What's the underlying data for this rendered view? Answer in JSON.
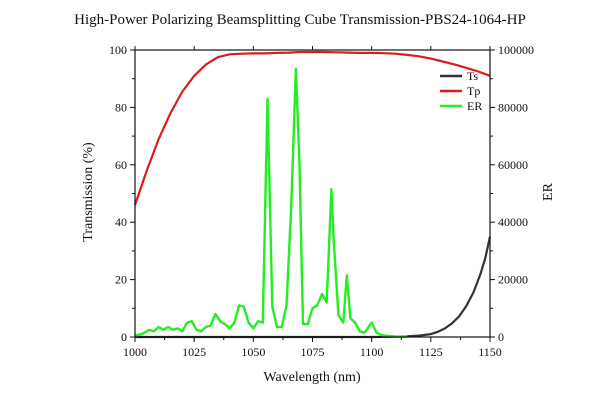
{
  "chart_data": {
    "type": "line",
    "title": "High-Power Polarizing Beamsplitting Cube Transmission-PBS24-1064-HP",
    "xlabel": "Wavelength (nm)",
    "ylabel_left": "Transmission (%)",
    "ylabel_right": "ER",
    "xlim": [
      1000,
      1150
    ],
    "ylim_left": [
      0,
      100
    ],
    "ylim_right": [
      0,
      100000
    ],
    "x_ticks": [
      "1000",
      "1025",
      "1050",
      "1075",
      "1100",
      "1125",
      "1150"
    ],
    "y_left_ticks": [
      "0",
      "20",
      "40",
      "60",
      "80",
      "100"
    ],
    "y_right_ticks": [
      "0",
      "20000",
      "40000",
      "60000",
      "80000",
      "100000"
    ],
    "grid": false,
    "legend_position": "top-right",
    "series": [
      {
        "name": "Ts",
        "axis": "left",
        "color": "#333333",
        "x": [
          1000,
          1100,
          1110,
          1115,
          1120,
          1125,
          1128,
          1131,
          1134,
          1137,
          1140,
          1143,
          1146,
          1148,
          1150
        ],
        "y": [
          0,
          0,
          0.1,
          0.2,
          0.5,
          1.0,
          1.8,
          3.0,
          4.8,
          7.2,
          10.8,
          15.5,
          22.0,
          27.5,
          35.0
        ]
      },
      {
        "name": "Tp",
        "axis": "left",
        "color": "#e01b1b",
        "x": [
          1000,
          1005,
          1010,
          1015,
          1020,
          1025,
          1030,
          1035,
          1040,
          1045,
          1050,
          1055,
          1060,
          1065,
          1070,
          1075,
          1080,
          1085,
          1090,
          1095,
          1100,
          1105,
          1110,
          1115,
          1120,
          1125,
          1130,
          1135,
          1140,
          1145,
          1150
        ],
        "y": [
          46,
          58,
          69,
          78,
          85.5,
          91,
          95,
          97.5,
          98.5,
          98.7,
          98.8,
          98.8,
          99,
          99.1,
          99.3,
          99.3,
          99.3,
          99.2,
          99.1,
          99.0,
          99.0,
          98.9,
          98.7,
          98.3,
          97.8,
          97.0,
          96.0,
          95.0,
          93.8,
          92.5,
          91.0
        ]
      },
      {
        "name": "ER",
        "axis": "right",
        "color": "#22ee22",
        "x": [
          1000,
          1003,
          1006,
          1008,
          1010,
          1012,
          1014,
          1016,
          1018,
          1020,
          1022,
          1024,
          1026,
          1028,
          1030,
          1032,
          1034,
          1036,
          1038,
          1040,
          1042,
          1044,
          1046,
          1048,
          1050,
          1052,
          1054,
          1056,
          1058,
          1060,
          1062,
          1064,
          1066,
          1068,
          1069.5,
          1071,
          1073,
          1075,
          1077,
          1079,
          1081,
          1083,
          1084,
          1086,
          1088,
          1089.5,
          1091,
          1093,
          1095,
          1097,
          1100,
          1102,
          1105,
          1110,
          1115
        ],
        "y": [
          500,
          1000,
          2500,
          2000,
          3500,
          2500,
          3500,
          2500,
          3000,
          2000,
          5000,
          5500,
          2500,
          2000,
          3500,
          4000,
          8000,
          5500,
          4500,
          3000,
          5000,
          11000,
          10500,
          5000,
          3000,
          5500,
          5000,
          83000,
          10500,
          3500,
          3500,
          11000,
          45000,
          93500,
          60000,
          4500,
          4500,
          10000,
          11000,
          15000,
          12000,
          51500,
          33000,
          7500,
          5000,
          21500,
          6500,
          5000,
          2000,
          1500,
          5000,
          1500,
          500,
          200,
          100
        ]
      }
    ]
  }
}
